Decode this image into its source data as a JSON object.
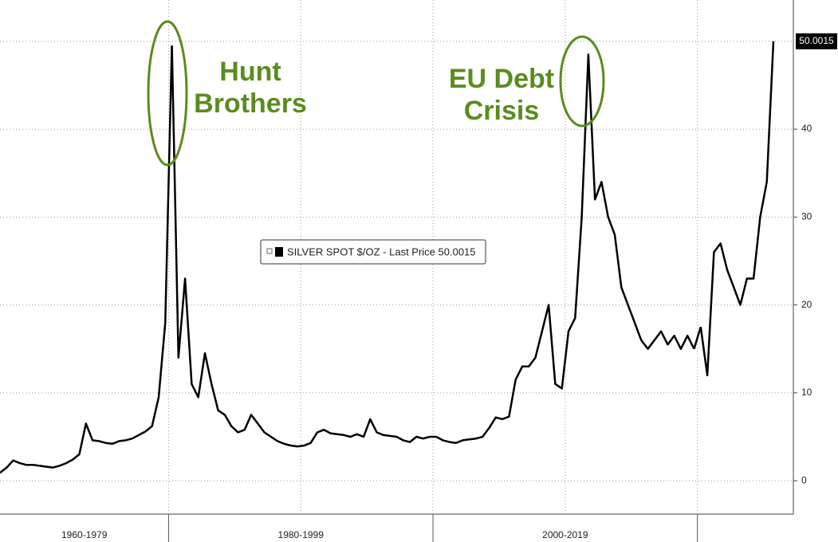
{
  "chart_data": {
    "type": "line",
    "color": "#000000",
    "grid": true,
    "series_name": "SILVER SPOT $/OZ - Last Price 50.0015",
    "segments": [
      {
        "label": "1960-1979",
        "values": [
          0.9,
          1.5,
          2.3,
          2.0,
          1.8,
          1.8,
          1.7,
          1.6,
          1.5,
          1.7,
          2.0,
          2.4,
          3.0,
          6.5,
          4.6,
          4.5,
          4.3,
          4.2,
          4.5,
          4.6,
          4.8,
          5.2,
          5.6,
          6.2,
          9.5,
          18
        ]
      },
      {
        "label": "1980-1999",
        "values": [
          49.5,
          14,
          23,
          11,
          9.5,
          14.5,
          11,
          8,
          7.5,
          6.2,
          5.5,
          5.8,
          7.5,
          6.5,
          5.5,
          5.0,
          4.5,
          4.2,
          4.0,
          3.9,
          4.0,
          4.3,
          5.5,
          5.8,
          5.4,
          5.3,
          5.2,
          5.0,
          5.3,
          5.0,
          7.0,
          5.5,
          5.2,
          5.1,
          5.0,
          4.6,
          4.4,
          5.0,
          4.8,
          5.0
        ]
      },
      {
        "label": "2000-2019",
        "values": [
          5.0,
          4.6,
          4.4,
          4.3,
          4.6,
          4.7,
          4.8,
          5.0,
          6.0,
          7.2,
          7.0,
          7.3,
          11.5,
          13,
          13,
          14,
          17,
          20,
          11,
          10.5,
          17,
          18.5,
          30,
          48.5,
          32,
          34,
          30,
          28,
          22,
          20,
          18,
          16,
          15,
          16,
          17,
          15.5,
          16.5,
          15,
          16.5,
          15
        ]
      },
      {
        "label": null,
        "values": [
          17.5,
          12,
          26,
          27,
          24,
          22,
          20,
          23,
          23,
          30,
          34,
          50.0015
        ]
      }
    ],
    "ylim": [
      -3.8,
      54.7
    ],
    "yticks": [
      0,
      10,
      20,
      30,
      40
    ],
    "annotations": [
      {
        "lines": [
          "Hunt",
          "Brothers"
        ]
      },
      {
        "lines": [
          "EU Debt",
          "Crisis"
        ]
      }
    ]
  }
}
